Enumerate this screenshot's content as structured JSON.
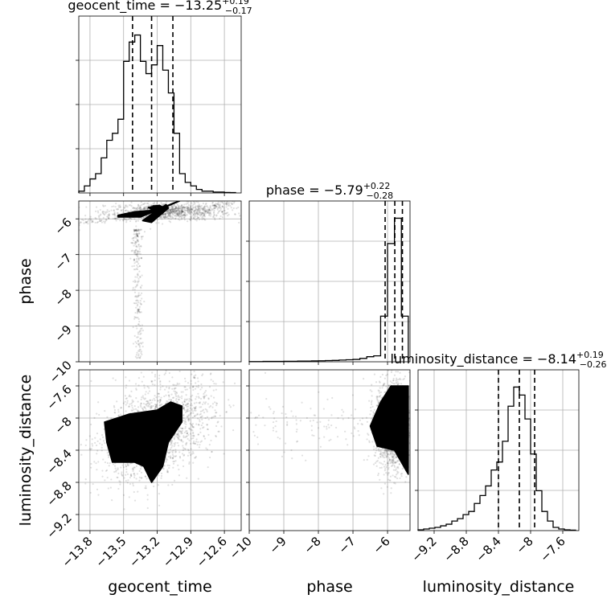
{
  "chart_data": [
    {
      "type": "histogram",
      "panel": "geocent_time",
      "title": "geocent_time = −13.25",
      "title_sup": "+0.19",
      "title_sub": "−0.17",
      "xlim": [
        -13.9,
        -12.45
      ],
      "quantiles": [
        -13.42,
        -13.25,
        -13.06
      ],
      "bins": [
        -13.9,
        -13.85,
        -13.8,
        -13.75,
        -13.7,
        -13.65,
        -13.6,
        -13.55,
        -13.5,
        -13.45,
        -13.4,
        -13.35,
        -13.3,
        -13.25,
        -13.2,
        -13.15,
        -13.1,
        -13.05,
        -13.0,
        -12.95,
        -12.9,
        -12.85,
        -12.8,
        -12.75,
        -12.7,
        -12.65,
        -12.6,
        -12.55,
        -12.5
      ],
      "counts": [
        0.01,
        0.04,
        0.08,
        0.11,
        0.2,
        0.3,
        0.34,
        0.42,
        0.75,
        0.86,
        0.9,
        0.75,
        0.68,
        0.73,
        0.84,
        0.7,
        0.57,
        0.34,
        0.11,
        0.06,
        0.04,
        0.02,
        0.01,
        0.01,
        0.005,
        0.005,
        0.003,
        0.002
      ],
      "grid": true
    },
    {
      "type": "scatter",
      "panel": "phase vs geocent_time",
      "xlabel": "",
      "ylabel": "phase",
      "xlim": [
        -13.9,
        -12.45
      ],
      "ylim": [
        -10.0,
        -5.5
      ],
      "yticks": [
        -6,
        -7,
        -8,
        -9,
        -10
      ],
      "density_peak": {
        "x": -13.22,
        "y": -5.7
      },
      "grid": true
    },
    {
      "type": "histogram",
      "panel": "phase",
      "title": "phase = −5.79",
      "title_sup": "+0.22",
      "title_sub": "−0.28",
      "xlim": [
        -10.0,
        -5.35
      ],
      "quantiles": [
        -6.07,
        -5.79,
        -5.57
      ],
      "bins": [
        -10.0,
        -9.8,
        -9.6,
        -9.4,
        -9.2,
        -9.0,
        -8.8,
        -8.6,
        -8.4,
        -8.2,
        -8.0,
        -7.8,
        -7.6,
        -7.4,
        -7.2,
        -7.0,
        -6.8,
        -6.6,
        -6.4,
        -6.2,
        -6.0,
        -5.8,
        -5.6,
        -5.4
      ],
      "counts": [
        0.001,
        0.001,
        0.002,
        0.002,
        0.002,
        0.003,
        0.003,
        0.004,
        0.004,
        0.005,
        0.006,
        0.007,
        0.008,
        0.01,
        0.012,
        0.014,
        0.02,
        0.03,
        0.035,
        0.27,
        0.7,
        0.85,
        0.27
      ],
      "grid": true
    },
    {
      "type": "scatter",
      "panel": "luminosity_distance vs geocent_time",
      "xlabel": "geocent_time",
      "ylabel": "luminosity_distance",
      "xlim": [
        -13.9,
        -12.45
      ],
      "ylim": [
        -9.4,
        -7.4
      ],
      "xticks": [
        -13.8,
        -13.5,
        -13.2,
        -12.9,
        -12.6
      ],
      "yticks": [
        -7.6,
        -8.0,
        -8.4,
        -8.8,
        -9.2
      ],
      "density_peak": {
        "x": -13.33,
        "y": -8.16
      },
      "grid": true
    },
    {
      "type": "scatter",
      "panel": "luminosity_distance vs phase",
      "xlabel": "phase",
      "ylabel": "",
      "xlim": [
        -10.0,
        -5.35
      ],
      "ylim": [
        -9.4,
        -7.4
      ],
      "xticks": [
        -10,
        -9,
        -8,
        -7,
        -6
      ],
      "density_peak": {
        "x": -5.95,
        "y": -8.08
      },
      "grid": true
    },
    {
      "type": "histogram",
      "panel": "luminosity_distance",
      "title": "luminosity_distance = −8.14",
      "title_sup": "+0.19",
      "title_sub": "−0.26",
      "xlabel": "luminosity_distance",
      "xlim": [
        -9.4,
        -7.4
      ],
      "xticks": [
        -9.2,
        -8.8,
        -8.4,
        -8.0,
        -7.6
      ],
      "quantiles": [
        -8.4,
        -8.14,
        -7.95
      ],
      "bins": [
        -9.4,
        -9.33,
        -9.26,
        -9.19,
        -9.12,
        -9.05,
        -8.98,
        -8.91,
        -8.84,
        -8.77,
        -8.7,
        -8.63,
        -8.56,
        -8.49,
        -8.42,
        -8.35,
        -8.28,
        -8.21,
        -8.14,
        -8.07,
        -8.0,
        -7.93,
        -7.86,
        -7.79,
        -7.72,
        -7.65,
        -7.58,
        -7.51,
        -7.44
      ],
      "counts": [
        0.005,
        0.01,
        0.015,
        0.02,
        0.03,
        0.04,
        0.06,
        0.075,
        0.1,
        0.12,
        0.17,
        0.22,
        0.28,
        0.38,
        0.43,
        0.56,
        0.78,
        0.9,
        0.85,
        0.7,
        0.48,
        0.25,
        0.12,
        0.06,
        0.02,
        0.01,
        0.005,
        0.003
      ],
      "grid": true
    }
  ]
}
